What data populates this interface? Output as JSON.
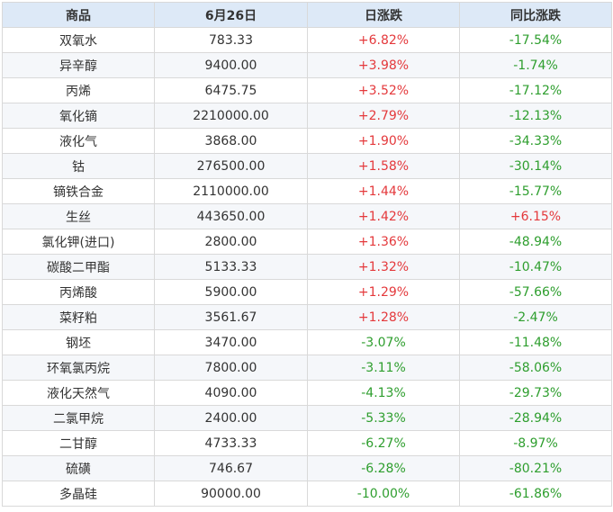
{
  "header": {
    "name": "商品",
    "date": "6月26日",
    "daily": "日涨跌",
    "yoy": "同比涨跌"
  },
  "colors": {
    "up": "#e4393c",
    "down": "#2e9e2e",
    "header_bg": "#dde9f7",
    "border": "#d9d9d9"
  },
  "rows": [
    {
      "name": "双氧水",
      "price": "783.33",
      "daily": "+6.82%",
      "yoy": "-17.54%"
    },
    {
      "name": "异辛醇",
      "price": "9400.00",
      "daily": "+3.98%",
      "yoy": "-1.74%"
    },
    {
      "name": "丙烯",
      "price": "6475.75",
      "daily": "+3.52%",
      "yoy": "-17.12%"
    },
    {
      "name": "氧化镝",
      "price": "2210000.00",
      "daily": "+2.79%",
      "yoy": "-12.13%"
    },
    {
      "name": "液化气",
      "price": "3868.00",
      "daily": "+1.90%",
      "yoy": "-34.33%"
    },
    {
      "name": "钴",
      "price": "276500.00",
      "daily": "+1.58%",
      "yoy": "-30.14%"
    },
    {
      "name": "镝铁合金",
      "price": "2110000.00",
      "daily": "+1.44%",
      "yoy": "-15.77%"
    },
    {
      "name": "生丝",
      "price": "443650.00",
      "daily": "+1.42%",
      "yoy": "+6.15%"
    },
    {
      "name": "氯化钾(进口)",
      "price": "2800.00",
      "daily": "+1.36%",
      "yoy": "-48.94%"
    },
    {
      "name": "碳酸二甲酯",
      "price": "5133.33",
      "daily": "+1.32%",
      "yoy": "-10.47%"
    },
    {
      "name": "丙烯酸",
      "price": "5900.00",
      "daily": "+1.29%",
      "yoy": "-57.66%"
    },
    {
      "name": "菜籽粕",
      "price": "3561.67",
      "daily": "+1.28%",
      "yoy": "-2.47%"
    },
    {
      "name": "钢坯",
      "price": "3470.00",
      "daily": "-3.07%",
      "yoy": "-11.48%"
    },
    {
      "name": "环氧氯丙烷",
      "price": "7800.00",
      "daily": "-3.11%",
      "yoy": "-58.06%"
    },
    {
      "name": "液化天然气",
      "price": "4090.00",
      "daily": "-4.13%",
      "yoy": "-29.73%"
    },
    {
      "name": "二氯甲烷",
      "price": "2400.00",
      "daily": "-5.33%",
      "yoy": "-28.94%"
    },
    {
      "name": "二甘醇",
      "price": "4733.33",
      "daily": "-6.27%",
      "yoy": "-8.97%"
    },
    {
      "name": "硫磺",
      "price": "746.67",
      "daily": "-6.28%",
      "yoy": "-80.21%"
    },
    {
      "name": "多晶硅",
      "price": "90000.00",
      "daily": "-10.00%",
      "yoy": "-61.86%"
    }
  ]
}
